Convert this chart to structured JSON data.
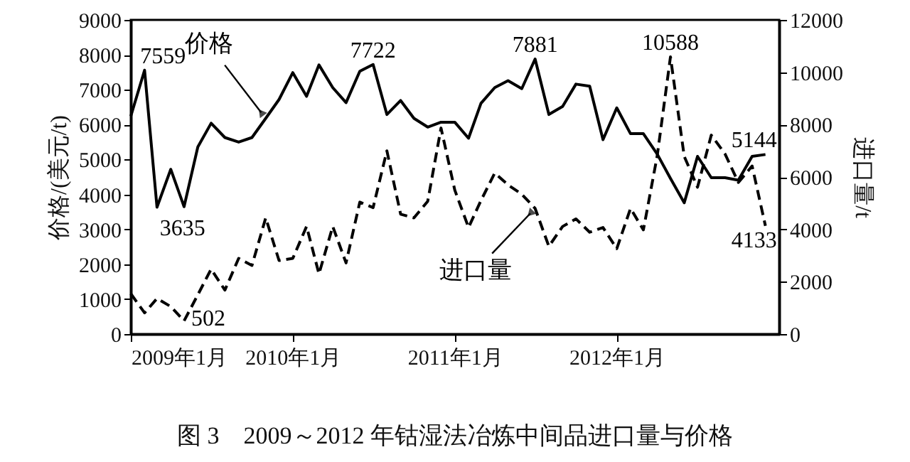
{
  "chart_data": {
    "type": "line",
    "title": "图 3　2009～2012 年钴湿法冶炼中间品进口量与价格",
    "ylabel": "价格/(美元/t)",
    "y2label": "进口量/t",
    "x": [
      "2009-01",
      "2009-02",
      "2009-03",
      "2009-04",
      "2009-05",
      "2009-06",
      "2009-07",
      "2009-08",
      "2009-09",
      "2009-10",
      "2009-11",
      "2009-12",
      "2010-01",
      "2010-02",
      "2010-03",
      "2010-04",
      "2010-05",
      "2010-06",
      "2010-07",
      "2010-08",
      "2010-09",
      "2010-10",
      "2010-11",
      "2010-12",
      "2011-01",
      "2011-02",
      "2011-03",
      "2011-04",
      "2011-05",
      "2011-06",
      "2011-07",
      "2011-08",
      "2011-09",
      "2011-10",
      "2011-11",
      "2011-12",
      "2012-01",
      "2012-02",
      "2012-03",
      "2012-04",
      "2012-05",
      "2012-06",
      "2012-07",
      "2012-08",
      "2012-09",
      "2012-10",
      "2012-11",
      "2012-12"
    ],
    "series": [
      {
        "color": "#000000",
        "line_style": "solid",
        "values": [
          6240,
          7559,
          3635,
          4720,
          3650,
          5360,
          6040,
          5630,
          5500,
          5630,
          6180,
          6720,
          7490,
          6810,
          7710,
          7060,
          6630,
          7530,
          7722,
          6290,
          6690,
          6180,
          5930,
          6070,
          6070,
          5610,
          6610,
          7060,
          7260,
          7030,
          7881,
          6290,
          6520,
          7160,
          7100,
          5570,
          6480,
          5740,
          5740,
          5160,
          4460,
          3760,
          5090,
          4480,
          4480,
          4410,
          5090,
          5144
        ],
        "value_labels": [
          null,
          "7559",
          "3635",
          null,
          null,
          null,
          null,
          null,
          null,
          null,
          null,
          null,
          null,
          null,
          null,
          null,
          null,
          null,
          "7722",
          null,
          null,
          null,
          null,
          null,
          null,
          null,
          null,
          null,
          null,
          null,
          "7881",
          null,
          null,
          null,
          null,
          null,
          null,
          null,
          null,
          null,
          null,
          null,
          null,
          null,
          null,
          null,
          null,
          "5144"
        ]
      },
      {
        "color": "#000000",
        "line_style": "dashed",
        "axis": "y2",
        "values": [
          1540,
          810,
          1360,
          1050,
          502,
          1500,
          2480,
          1680,
          2890,
          2620,
          4440,
          2810,
          2890,
          4110,
          2300,
          4110,
          2720,
          5040,
          4830,
          7000,
          4580,
          4440,
          5070,
          7870,
          5500,
          4070,
          5100,
          6150,
          5700,
          5340,
          4800,
          3350,
          4110,
          4400,
          3890,
          4070,
          3260,
          4800,
          3980,
          6790,
          10588,
          6790,
          5610,
          7600,
          6880,
          5790,
          6420,
          4133
        ],
        "value_labels": [
          null,
          null,
          null,
          null,
          "502",
          null,
          null,
          null,
          null,
          null,
          null,
          null,
          null,
          null,
          null,
          null,
          null,
          null,
          null,
          null,
          null,
          null,
          null,
          null,
          null,
          null,
          null,
          null,
          null,
          null,
          null,
          null,
          null,
          null,
          null,
          null,
          null,
          null,
          null,
          null,
          "10588",
          null,
          null,
          null,
          null,
          null,
          null,
          "4133"
        ]
      }
    ],
    "annotations": [
      {
        "text": "价格",
        "x": "2009-11",
        "y": 6180
      },
      {
        "text": "进口量",
        "x": "2011-07",
        "y": 3600
      }
    ],
    "xlim": [
      "2009-01",
      "2013-01"
    ],
    "xticks": [
      {
        "value": "2009-01",
        "label": "2009年1月"
      },
      {
        "value": "2010-01",
        "label": "2010年1月"
      },
      {
        "value": "2011-01",
        "label": "2011年1月"
      },
      {
        "value": "2012-01",
        "label": "2012年1月"
      }
    ],
    "ylim": [
      0,
      9000
    ],
    "yticks": [
      0,
      1000,
      2000,
      3000,
      4000,
      5000,
      6000,
      7000,
      8000,
      9000
    ],
    "y2lim": [
      0,
      12000
    ],
    "y2ticks": [
      0,
      2000,
      4000,
      6000,
      8000,
      10000,
      12000
    ],
    "grid": false,
    "marker": "none"
  }
}
